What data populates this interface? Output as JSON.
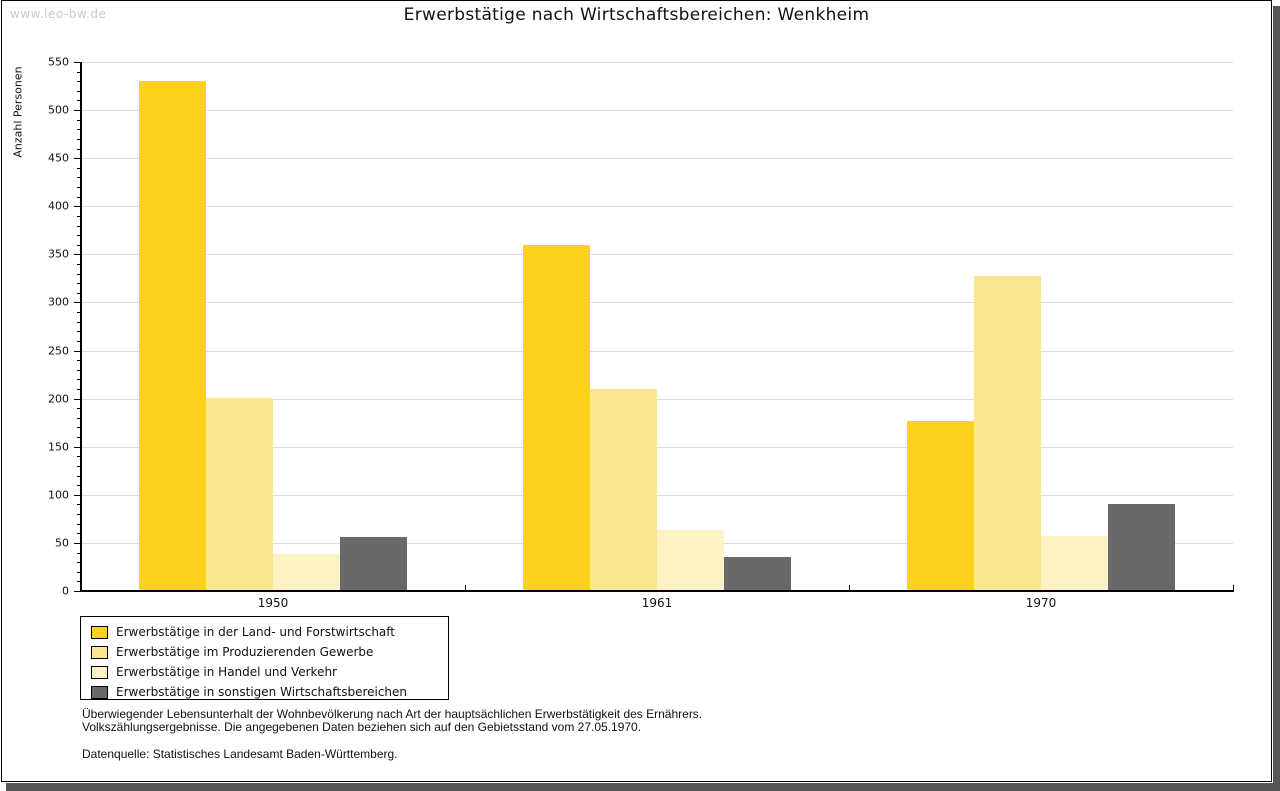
{
  "watermark": "www.leo-bw.de",
  "chart_data": {
    "type": "bar",
    "title": "Erwerbstätige nach Wirtschaftsbereichen: Wenkheim",
    "xlabel": "",
    "ylabel": "Anzahl Personen",
    "categories": [
      "1950",
      "1961",
      "1970"
    ],
    "series": [
      {
        "name": "Erwerbstätige in der Land- und Forstwirtschaft",
        "color": "#fcd11e",
        "values": [
          530,
          360,
          177
        ]
      },
      {
        "name": "Erwerbstätige im Produzierenden Gewerbe",
        "color": "#fae68f",
        "values": [
          201,
          210,
          327
        ]
      },
      {
        "name": "Erwerbstätige in Handel und Verkehr",
        "color": "#fcf2c4",
        "values": [
          38,
          63,
          57
        ]
      },
      {
        "name": "Erwerbstätige in sonstigen Wirtschaftsbereichen",
        "color": "#696969",
        "values": [
          56,
          35,
          90
        ]
      }
    ],
    "ylim": [
      0,
      550
    ],
    "ytick_step": 50,
    "yminor_step": 10,
    "yticks": [
      0,
      50,
      100,
      150,
      200,
      250,
      300,
      350,
      400,
      450,
      500,
      550
    ],
    "grid": true,
    "legend_position": "bottom-left"
  },
  "footer": {
    "note_line1": "Überwiegender Lebensunterhalt der Wohnbevölkerung nach Art der hauptsächlichen Erwerbstätigkeit des Ernährers.",
    "note_line2": "Volkszählungsergebnisse. Die angegebenen Daten beziehen sich auf den Gebietsstand vom 27.05.1970.",
    "source": "Datenquelle: Statistisches Landesamt Baden-Württemberg."
  },
  "colors": {
    "grid": "#dcdcdc",
    "axis": "#000000",
    "watermark": "#c9c9c9",
    "window_shadow": "#565656",
    "background": "#ffffff"
  }
}
